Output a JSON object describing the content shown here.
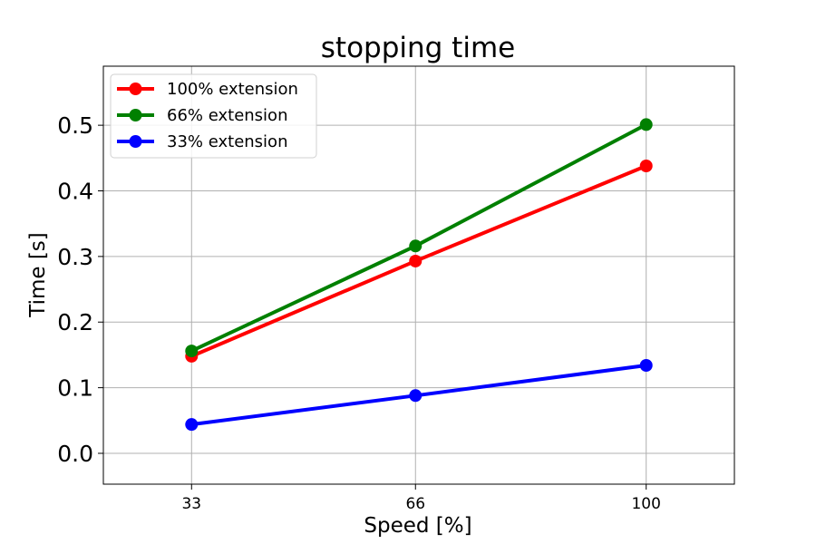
{
  "chart_data": {
    "type": "line",
    "title": "stopping time",
    "xlabel": "Speed [%]",
    "ylabel": "Time [s]",
    "x": [
      33,
      66,
      100
    ],
    "x_tick_labels": [
      "33",
      "66",
      "100"
    ],
    "y_tick_labels": [
      "0.0",
      "0.1",
      "0.2",
      "0.3",
      "0.4",
      "0.5"
    ],
    "y_ticks": [
      0.0,
      0.1,
      0.2,
      0.3,
      0.4,
      0.5
    ],
    "xlim": [
      20,
      113
    ],
    "ylim": [
      -0.047,
      0.59
    ],
    "grid": true,
    "legend_position": "top-left",
    "series": [
      {
        "name": "100% extension",
        "color": "#ff0000",
        "values": [
          0.148,
          0.293,
          0.438
        ]
      },
      {
        "name": "66% extension",
        "color": "#008000",
        "values": [
          0.156,
          0.316,
          0.501
        ]
      },
      {
        "name": "33% extension",
        "color": "#0000ff",
        "values": [
          0.044,
          0.088,
          0.134
        ]
      }
    ]
  }
}
